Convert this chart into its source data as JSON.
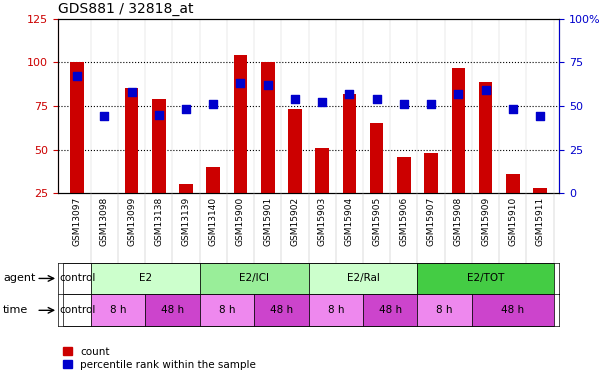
{
  "title": "GDS881 / 32818_at",
  "samples": [
    "GSM13097",
    "GSM13098",
    "GSM13099",
    "GSM13138",
    "GSM13139",
    "GSM13140",
    "GSM15900",
    "GSM15901",
    "GSM15902",
    "GSM15903",
    "GSM15904",
    "GSM15905",
    "GSM15906",
    "GSM15907",
    "GSM15908",
    "GSM15909",
    "GSM15910",
    "GSM15911"
  ],
  "counts": [
    100,
    25,
    85,
    79,
    30,
    40,
    104,
    100,
    73,
    51,
    82,
    65,
    46,
    48,
    97,
    89,
    36,
    28
  ],
  "percs_right": [
    67,
    44,
    58,
    45,
    48,
    51,
    63,
    62,
    54,
    52,
    57,
    54,
    51,
    51,
    57,
    59,
    48,
    44
  ],
  "count_color": "#cc0000",
  "percentile_color": "#0000cc",
  "ylim_left": [
    25,
    125
  ],
  "ylim_right": [
    0,
    100
  ],
  "yticks_left": [
    25,
    50,
    75,
    100,
    125
  ],
  "yticks_right": [
    0,
    25,
    50,
    75,
    100
  ],
  "ytick_labels_left": [
    "25",
    "50",
    "75",
    "100",
    "125"
  ],
  "ytick_labels_right": [
    "0",
    "25",
    "50",
    "75",
    "100%"
  ],
  "agent_groups": [
    {
      "label": "control",
      "start": 0,
      "end": 1,
      "color": "#ffffff"
    },
    {
      "label": "E2",
      "start": 1,
      "end": 5,
      "color": "#ccffcc"
    },
    {
      "label": "E2/ICI",
      "start": 5,
      "end": 9,
      "color": "#88ee88"
    },
    {
      "label": "E2/Ral",
      "start": 9,
      "end": 13,
      "color": "#ccffcc"
    },
    {
      "label": "E2/TOT",
      "start": 13,
      "end": 18,
      "color": "#44cc44"
    }
  ],
  "time_groups": [
    {
      "label": "control",
      "start": 0,
      "end": 1,
      "color": "#ffffff"
    },
    {
      "label": "8 h",
      "start": 1,
      "end": 3,
      "color": "#ee88ee"
    },
    {
      "label": "48 h",
      "start": 3,
      "end": 5,
      "color": "#cc44cc"
    },
    {
      "label": "8 h",
      "start": 5,
      "end": 7,
      "color": "#ee88ee"
    },
    {
      "label": "48 h",
      "start": 7,
      "end": 9,
      "color": "#cc44cc"
    },
    {
      "label": "8 h",
      "start": 9,
      "end": 11,
      "color": "#ee88ee"
    },
    {
      "label": "48 h",
      "start": 11,
      "end": 13,
      "color": "#cc44cc"
    },
    {
      "label": "8 h",
      "start": 13,
      "end": 15,
      "color": "#ee88ee"
    },
    {
      "label": "48 h",
      "start": 15,
      "end": 18,
      "color": "#cc44cc"
    }
  ],
  "bar_width": 0.5,
  "dot_size": 30,
  "background_color": "#ffffff"
}
